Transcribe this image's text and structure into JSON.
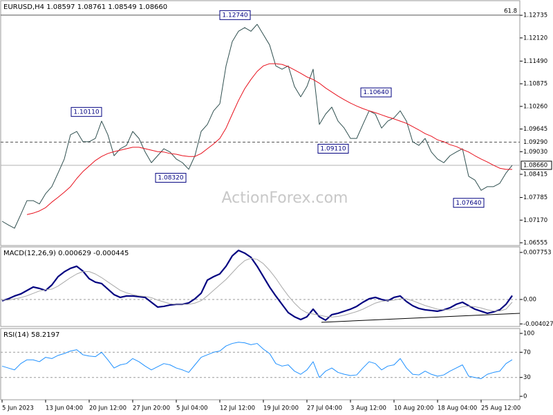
{
  "chart_data": [
    {
      "type": "line",
      "title": "EURUSD,H4  1.08597 1.08761 1.08549 1.08660",
      "watermark": "ActionForex.com",
      "series": [
        {
          "color": "#2f4f4f",
          "values": [
            1.0714,
            1.0704,
            1.0695,
            1.0732,
            1.077,
            1.077,
            1.0761,
            1.0789,
            1.0808,
            1.0845,
            1.0883,
            1.0949,
            1.0958,
            1.093,
            1.093,
            1.0939,
            1.0986,
            1.0949,
            1.0892,
            1.0911,
            1.092,
            1.0958,
            1.0939,
            1.0902,
            1.0873,
            1.0892,
            1.0911,
            1.0902,
            1.0883,
            1.0873,
            1.0855,
            1.0892,
            1.0958,
            1.0977,
            1.1014,
            1.1033,
            1.1136,
            1.1202,
            1.123,
            1.124,
            1.123,
            1.1249,
            1.1221,
            1.1193,
            1.1136,
            1.1127,
            1.1136,
            1.108,
            1.1052,
            1.108,
            1.1127,
            1.0977,
            1.1005,
            1.1024,
            1.0986,
            1.0967,
            1.0939,
            1.0939,
            1.0977,
            1.1014,
            1.1005,
            1.0967,
            1.0986,
            1.0995,
            1.1014,
            1.0986,
            1.093,
            1.092,
            1.0939,
            1.0902,
            1.0883,
            1.0873,
            1.0892,
            1.0902,
            1.0911,
            1.0836,
            1.0826,
            1.0798,
            1.0808,
            1.0808,
            1.0817,
            1.0845,
            1.0866
          ]
        },
        {
          "color": "#e8101c",
          "values": [
            null,
            null,
            null,
            null,
            1.0732,
            1.0736,
            1.0742,
            1.0751,
            1.0766,
            1.0779,
            1.0793,
            1.0808,
            1.083,
            1.0849,
            1.0864,
            1.0879,
            1.089,
            1.0898,
            1.0903,
            1.0907,
            1.0911,
            1.0915,
            1.0915,
            1.0911,
            1.0907,
            1.0903,
            1.0902,
            1.0898,
            1.0896,
            1.0892,
            1.089,
            1.089,
            1.0898,
            1.0911,
            1.0924,
            1.0939,
            1.0967,
            1.1005,
            1.1042,
            1.1074,
            1.1099,
            1.1121,
            1.1136,
            1.1142,
            1.1142,
            1.114,
            1.1134,
            1.1125,
            1.1116,
            1.1106,
            1.1099,
            1.1089,
            1.1076,
            1.1065,
            1.1054,
            1.1044,
            1.1035,
            1.1027,
            1.102,
            1.1014,
            1.1009,
            1.1003,
            1.0997,
            1.0992,
            1.0986,
            1.098,
            1.0971,
            1.0962,
            1.0952,
            1.0945,
            1.0935,
            1.093,
            1.0922,
            1.0917,
            1.0909,
            1.0902,
            1.0892,
            1.0883,
            1.0875,
            1.0866,
            1.0858,
            1.0855,
            1.0855
          ]
        }
      ],
      "ylim": [
        1.0648,
        1.1315
      ],
      "yticks": [
        1.12735,
        {
          "value": 1.1212,
          "label": "1.12120"
        },
        {
          "value": 1.1149,
          "label": "1.11490"
        },
        1.10875,
        {
          "value": 1.1026,
          "label": "1.10260"
        },
        1.09645,
        {
          "value": 1.0903,
          "label": "1.09030"
        },
        1.08415,
        1.07785,
        {
          "value": 1.0717,
          "label": "1.07170"
        },
        1.06555
      ],
      "grid": false,
      "levels": [
        {
          "value": 1.1274,
          "label": "61.8",
          "style": "solid"
        },
        {
          "value": 1.0929,
          "label": "1.09290",
          "style": "dashed"
        },
        {
          "value": 1.0866,
          "label": "1.08660",
          "style": "current"
        }
      ],
      "annotations": [
        {
          "value": 1.1274,
          "label": "1.12740"
        },
        {
          "value": 1.1011,
          "label": "1.10110"
        },
        {
          "value": 1.0832,
          "label": "1.08320"
        },
        {
          "value": 1.0911,
          "label": "1.09110"
        },
        {
          "value": 1.1064,
          "label": "1.10640"
        },
        {
          "value": 1.0764,
          "label": "1.07640"
        }
      ]
    },
    {
      "type": "line",
      "title": "MACD(12,26,9) 0.000629 -0.000445",
      "series": [
        {
          "color": "#000080",
          "values": [
            -0.00023,
            0.00011,
            0.00057,
            0.00091,
            0.00148,
            0.00205,
            0.00182,
            0.00148,
            0.00239,
            0.00376,
            0.00456,
            0.00513,
            0.00547,
            0.00467,
            0.00342,
            0.00285,
            0.00262,
            0.00171,
            0.0008,
            0.00034,
            0.00057,
            0.00057,
            0.00046,
            0.00034,
            -0.00046,
            -0.00125,
            -0.00114,
            -0.00091,
            -0.0008,
            -0.0008,
            -0.00057,
            0.00011,
            0.00103,
            0.00319,
            0.00376,
            0.00422,
            0.00547,
            0.00718,
            0.00809,
            0.00764,
            0.00695,
            0.00547,
            0.00376,
            0.00205,
            0.00057,
            -0.0008,
            -0.00217,
            -0.00285,
            -0.00331,
            -0.00285,
            -0.0016,
            -0.00285,
            -0.00342,
            -0.00251,
            -0.00228,
            -0.00194,
            -0.0016,
            -0.00114,
            -0.00046,
            0.00011,
            0.00034,
            0,
            -0.00023,
            0.00034,
            0.00057,
            -0.00034,
            -0.00103,
            -0.00148,
            -0.00171,
            -0.00182,
            -0.00194,
            -0.00171,
            -0.00137,
            -0.0008,
            -0.00046,
            -0.00103,
            -0.0016,
            -0.00194,
            -0.00228,
            -0.00205,
            -0.00171,
            -0.0008,
            0.000629
          ]
        },
        {
          "color": "#a9a9a9",
          "values": [
            -0.0001,
            -0.0001,
            0.0001,
            0.0003,
            0.0006,
            0.001,
            0.0014,
            0.0016,
            0.0017,
            0.0022,
            0.0029,
            0.0036,
            0.0042,
            0.0046,
            0.0046,
            0.0042,
            0.0036,
            0.0029,
            0.0022,
            0.0015,
            0.0011,
            0.0008,
            0.0006,
            0.0005,
            0.0003,
            -0.0001,
            -0.0004,
            -0.0007,
            -0.0008,
            -0.0008,
            -0.0008,
            -0.0006,
            -0.0002,
            0.0006,
            0.0015,
            0.0024,
            0.0033,
            0.0044,
            0.0055,
            0.0064,
            0.0068,
            0.0066,
            0.0059,
            0.0048,
            0.0035,
            0.002,
            0.0006,
            -0.0006,
            -0.0016,
            -0.0022,
            -0.0024,
            -0.0026,
            -0.0028,
            -0.0029,
            -0.0028,
            -0.0026,
            -0.0023,
            -0.002,
            -0.0016,
            -0.0011,
            -0.0006,
            -0.0003,
            -0.0002,
            -0.0001,
            0.0001,
            0.0001,
            -0.0002,
            -0.0006,
            -0.001,
            -0.0013,
            -0.0016,
            -0.0017,
            -0.0017,
            -0.0015,
            -0.0012,
            -0.0011,
            -0.0012,
            -0.0014,
            -0.0017,
            -0.0019,
            -0.0019,
            -0.0016,
            -0.000445
          ]
        }
      ],
      "ylim": [
        -0.00445,
        0.00866
      ],
      "yticks": [
        0.007753,
        {
          "value": 0,
          "label": "0.00"
        },
        -0.004027
      ],
      "grid": "zero"
    },
    {
      "type": "line",
      "title": "RSI(14) 58.2197",
      "categories": [
        "5 Jun 2023",
        null,
        null,
        null,
        null,
        null,
        null,
        "13 Jun 04:00",
        null,
        null,
        null,
        null,
        null,
        null,
        "20 Jun 12:00",
        null,
        null,
        null,
        null,
        null,
        null,
        "27 Jun 20:00",
        null,
        null,
        null,
        null,
        null,
        null,
        "5 Jul 04:00",
        null,
        null,
        null,
        null,
        null,
        null,
        "12 Jul 12:00",
        null,
        null,
        null,
        null,
        null,
        null,
        "19 Jul 20:00",
        null,
        null,
        null,
        null,
        null,
        null,
        "27 Jul 04:00",
        null,
        null,
        null,
        null,
        null,
        null,
        "3 Aug 12:00",
        null,
        null,
        null,
        null,
        null,
        null,
        "10 Aug 20:00",
        null,
        null,
        null,
        null,
        null,
        null,
        "18 Aug 04:00",
        null,
        null,
        null,
        null,
        null,
        null,
        "25 Aug 12:00",
        null,
        null,
        null,
        null,
        null
      ],
      "series": [
        {
          "color": "#1e90ff",
          "values": [
            48,
            45,
            42,
            52,
            58,
            58,
            55,
            62,
            60,
            65,
            68,
            72,
            74,
            66,
            64,
            63,
            70,
            58,
            45,
            50,
            52,
            60,
            55,
            48,
            42,
            47,
            52,
            50,
            45,
            42,
            38,
            50,
            62,
            66,
            70,
            72,
            80,
            84,
            86,
            85,
            82,
            84,
            75,
            68,
            52,
            48,
            50,
            40,
            35,
            42,
            55,
            30,
            40,
            45,
            38,
            35,
            33,
            34,
            45,
            55,
            52,
            42,
            48,
            50,
            60,
            45,
            35,
            34,
            40,
            35,
            32,
            34,
            40,
            45,
            50,
            32,
            30,
            28,
            35,
            38,
            40,
            52,
            58.2197
          ]
        }
      ],
      "ylim": [
        0,
        100
      ],
      "yticks": [
        100,
        70,
        30,
        0
      ],
      "grid": true
    }
  ]
}
